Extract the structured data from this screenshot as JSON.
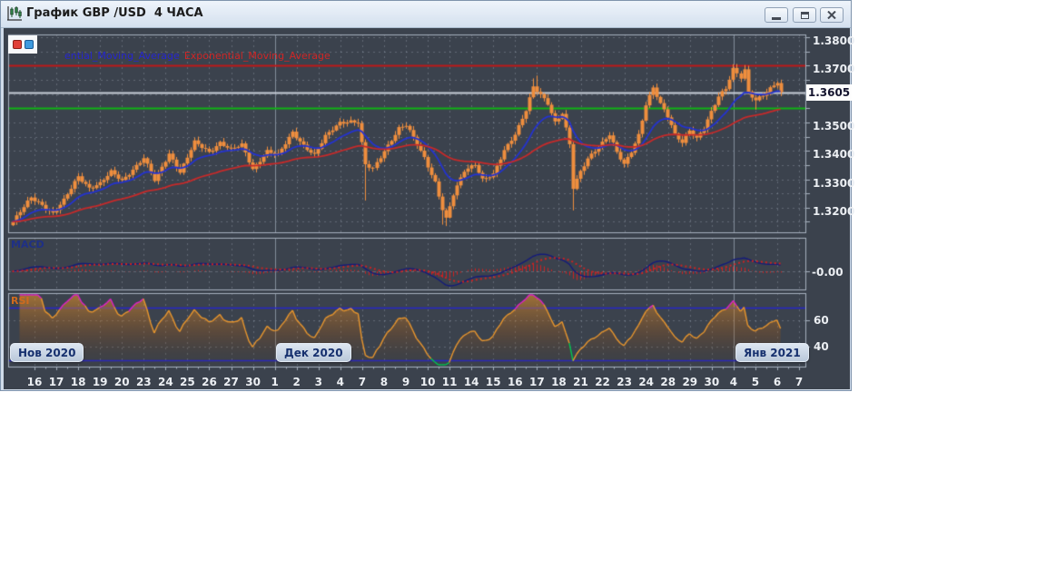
{
  "window": {
    "title": "График GBP /USD  4 ЧАСА",
    "controls": {
      "minimize": "minimize",
      "maximize": "maximize",
      "close": "close"
    }
  },
  "legend": {
    "blue_label": "ential_Moving_Average",
    "red_label": "Exponential_Moving_Average"
  },
  "panels": {
    "macd_label": "MACD",
    "rsi_label": "RSI",
    "macd_axis_label": "-0.00",
    "rsi_axis_labels": [
      "60",
      "40"
    ]
  },
  "price_axis": {
    "labels": [
      "1.3800",
      "1.3700",
      "1.3500",
      "1.3400",
      "1.3300",
      "1.3200"
    ],
    "current_price": "1.3605"
  },
  "x_axis": {
    "labels": [
      "16",
      "17",
      "18",
      "19",
      "20",
      "23",
      "24",
      "25",
      "26",
      "27",
      "30",
      "1",
      "2",
      "3",
      "4",
      "7",
      "8",
      "9",
      "10",
      "11",
      "14",
      "15",
      "16",
      "17",
      "18",
      "21",
      "22",
      "23",
      "24",
      "28",
      "29",
      "30",
      "4",
      "5",
      "6",
      "7"
    ]
  },
  "month_buttons": [
    {
      "label": "Нов 2020",
      "day_index": 0
    },
    {
      "label": "Дек 2020",
      "day_index": 11
    },
    {
      "label": "Янв 2021",
      "day_index": 32
    }
  ],
  "colors": {
    "chart_bg": "#3b424d",
    "panel_border": "#a6b0bd",
    "grid": "rgba(150,160,173,0.42)",
    "month_separator": "#828d9b",
    "candle": "#ef8e3e",
    "ema_fast": "#2433cf",
    "ema_slow": "#c62a2a",
    "level_red": "#c01818",
    "level_green": "#10b414",
    "level_white": "#c8ced8",
    "macd_line": "#141b7a",
    "macd_signal": "#cc2222",
    "macd_histogram": "#cc2222",
    "rsi_line": "#e8962e",
    "rsi_overbought": "#e020c8",
    "rsi_oversold": "#00c850",
    "rsi_levels": "#2626c9",
    "axis_text": "#eceff3"
  },
  "chart_data": {
    "type": "candlestick",
    "instrument": "GBP/USD",
    "timeframe": "4 ЧАСА",
    "x_labels_are_days": true,
    "month_start_indices": [
      11,
      32
    ],
    "month_separator_days": [
      11,
      32
    ],
    "y_range": [
      1.3115,
      1.381
    ],
    "y_grid_step": 0.005,
    "levels": [
      {
        "value": 1.37,
        "color": "#c01818",
        "role": "resistance"
      },
      {
        "value": 1.3605,
        "color": "#c8ced8",
        "role": "current-price"
      },
      {
        "value": 1.355,
        "color": "#10b414",
        "role": "support"
      }
    ],
    "bars_total": 212,
    "close_keypoints": [
      [
        0,
        1.315
      ],
      [
        2,
        1.3185
      ],
      [
        5,
        1.3235
      ],
      [
        8,
        1.321
      ],
      [
        11,
        1.318
      ],
      [
        14,
        1.3225
      ],
      [
        18,
        1.331
      ],
      [
        21,
        1.327
      ],
      [
        24,
        1.3285
      ],
      [
        27,
        1.3325
      ],
      [
        30,
        1.3295
      ],
      [
        33,
        1.3335
      ],
      [
        36,
        1.3375
      ],
      [
        39,
        1.3295
      ],
      [
        43,
        1.339
      ],
      [
        46,
        1.3325
      ],
      [
        50,
        1.343
      ],
      [
        54,
        1.3395
      ],
      [
        57,
        1.343
      ],
      [
        60,
        1.3405
      ],
      [
        63,
        1.342
      ],
      [
        66,
        1.3335
      ],
      [
        70,
        1.34
      ],
      [
        73,
        1.3385
      ],
      [
        77,
        1.3465
      ],
      [
        80,
        1.342
      ],
      [
        83,
        1.3385
      ],
      [
        86,
        1.345
      ],
      [
        90,
        1.35
      ],
      [
        93,
        1.3505
      ],
      [
        95,
        1.35
      ],
      [
        97,
        1.335
      ],
      [
        99,
        1.3335
      ],
      [
        102,
        1.34
      ],
      [
        106,
        1.348
      ],
      [
        108,
        1.349
      ],
      [
        110,
        1.3445
      ],
      [
        113,
        1.3375
      ],
      [
        116,
        1.329
      ],
      [
        118,
        1.3195
      ],
      [
        119,
        1.316
      ],
      [
        121,
        1.3245
      ],
      [
        124,
        1.333
      ],
      [
        127,
        1.3355
      ],
      [
        129,
        1.33
      ],
      [
        132,
        1.3315
      ],
      [
        135,
        1.34
      ],
      [
        138,
        1.346
      ],
      [
        141,
        1.3545
      ],
      [
        143,
        1.3625
      ],
      [
        145,
        1.3595
      ],
      [
        147,
        1.3565
      ],
      [
        149,
        1.35
      ],
      [
        151,
        1.3535
      ],
      [
        153,
        1.3425
      ],
      [
        154,
        1.327
      ],
      [
        156,
        1.3325
      ],
      [
        158,
        1.337
      ],
      [
        161,
        1.3415
      ],
      [
        164,
        1.346
      ],
      [
        166,
        1.3395
      ],
      [
        168,
        1.335
      ],
      [
        170,
        1.3395
      ],
      [
        172,
        1.3455
      ],
      [
        174,
        1.3565
      ],
      [
        176,
        1.3625
      ],
      [
        178,
        1.3565
      ],
      [
        180,
        1.352
      ],
      [
        182,
        1.3455
      ],
      [
        184,
        1.343
      ],
      [
        186,
        1.3475
      ],
      [
        188,
        1.3445
      ],
      [
        190,
        1.348
      ],
      [
        192,
        1.3535
      ],
      [
        194,
        1.359
      ],
      [
        196,
        1.362
      ],
      [
        198,
        1.369
      ],
      [
        200,
        1.366
      ],
      [
        201,
        1.3685
      ],
      [
        202,
        1.3605
      ],
      [
        204,
        1.3575
      ],
      [
        206,
        1.3595
      ],
      [
        208,
        1.362
      ],
      [
        210,
        1.3645
      ],
      [
        211,
        1.3605
      ]
    ],
    "wick_overrides": [
      {
        "bar": 97,
        "low": 1.3225
      },
      {
        "bar": 118,
        "low": 1.314
      },
      {
        "bar": 119,
        "low": 1.3135
      },
      {
        "bar": 154,
        "low": 1.319
      },
      {
        "bar": 204,
        "low": 1.3545
      },
      {
        "bar": 143,
        "high": 1.3655
      },
      {
        "bar": 144,
        "high": 1.3665
      },
      {
        "bar": 198,
        "high": 1.3705
      },
      {
        "bar": 199,
        "high": 1.37
      },
      {
        "bar": 201,
        "high": 1.3702
      }
    ],
    "overlays": [
      {
        "name": "Exponential_Moving_Average",
        "color": "#2433cf",
        "period": 14
      },
      {
        "name": "Exponential_Moving_Average",
        "color": "#c62a2a",
        "period": 50
      }
    ],
    "macd": {
      "fast": 12,
      "slow": 26,
      "signal": 9,
      "axis_label": "-0.00"
    },
    "rsi": {
      "period": 14,
      "upper": 70,
      "lower": 30,
      "grid_levels": [
        60,
        40
      ]
    }
  }
}
